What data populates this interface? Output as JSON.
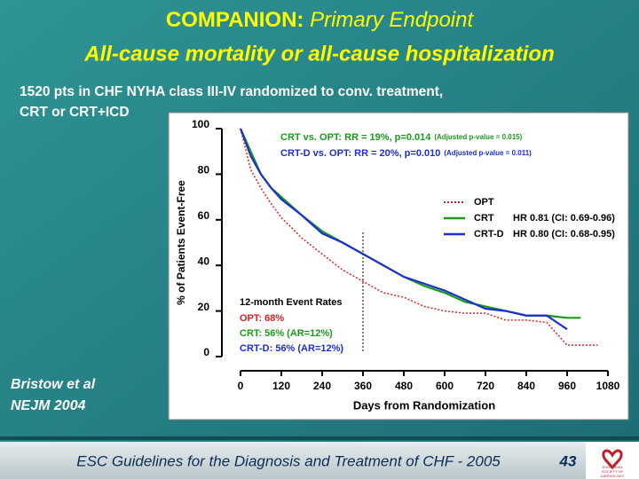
{
  "header": {
    "title_lead": "COMPANION:",
    "title_rest": "Primary Endpoint",
    "title_line2": "All-cause mortality or all-cause hospitalization",
    "subtitle_line1": "1520 pts in CHF NYHA class III-IV randomized to conv. treatment,",
    "subtitle_line2": "CRT or CRT+ICD"
  },
  "citation": [
    "Bristow et al",
    "NEJM 2004"
  ],
  "footer": {
    "text": "ESC Guidelines for the Diagnosis and Treatment of CHF - 2005",
    "page": "43",
    "logo": [
      "EUROPEAN",
      "SOCIETY OF",
      "CARDIOLOGY"
    ]
  },
  "chart_data": {
    "type": "line",
    "x_label": "Days from Randomization",
    "y_label": "% of Patients Event-Free",
    "x": [
      0,
      30,
      60,
      90,
      120,
      180,
      240,
      300,
      360,
      420,
      480,
      540,
      600,
      660,
      720,
      780,
      840,
      900,
      960,
      1000,
      1050
    ],
    "series": [
      {
        "name": "OPT",
        "color": "#e02020",
        "dash": true,
        "values": [
          100,
          82,
          74,
          67,
          61,
          52,
          45,
          38,
          33,
          28,
          26,
          22,
          20,
          19,
          19,
          16,
          16,
          15,
          5,
          5,
          5
        ]
      },
      {
        "name": "CRT",
        "color": "#1a9a1a",
        "dash": false,
        "values": [
          100,
          90,
          80,
          74,
          70,
          62,
          55,
          50,
          45,
          40,
          35,
          31,
          28,
          24,
          22,
          20,
          18,
          18,
          17,
          17,
          null
        ]
      },
      {
        "name": "CRT-D",
        "color": "#1c2fd0",
        "dash": false,
        "values": [
          100,
          88,
          80,
          74,
          69,
          62,
          54,
          50,
          45,
          40,
          35,
          32,
          29,
          25,
          21,
          20,
          18,
          18,
          12,
          null,
          null
        ]
      }
    ],
    "legend_notes": [
      "",
      "HR 0.81 (CI:  0.69-0.96)",
      "HR 0.80 (CI:  0.68-0.95)"
    ],
    "xlim": [
      0,
      1080
    ],
    "xticks": [
      0,
      120,
      240,
      360,
      480,
      600,
      720,
      840,
      960,
      1080
    ],
    "ylim": [
      0,
      100
    ],
    "yticks": [
      0,
      20,
      40,
      60,
      80,
      100
    ],
    "vline": 360,
    "comparisons": [
      {
        "text": "CRT vs. OPT:  RR = 19%, p=0.014",
        "note": "(Adjusted p-value = 0.015)"
      },
      {
        "text": "CRT-D vs. OPT:  RR = 20%, p=0.010",
        "note": "(Adjusted p-value = 0.011)"
      }
    ],
    "event_rates": {
      "title": "12-month Event Rates",
      "lines": [
        "OPT: 68%",
        "CRT: 56%  (AR=12%)",
        "CRT-D: 56% (AR=12%)"
      ]
    }
  }
}
